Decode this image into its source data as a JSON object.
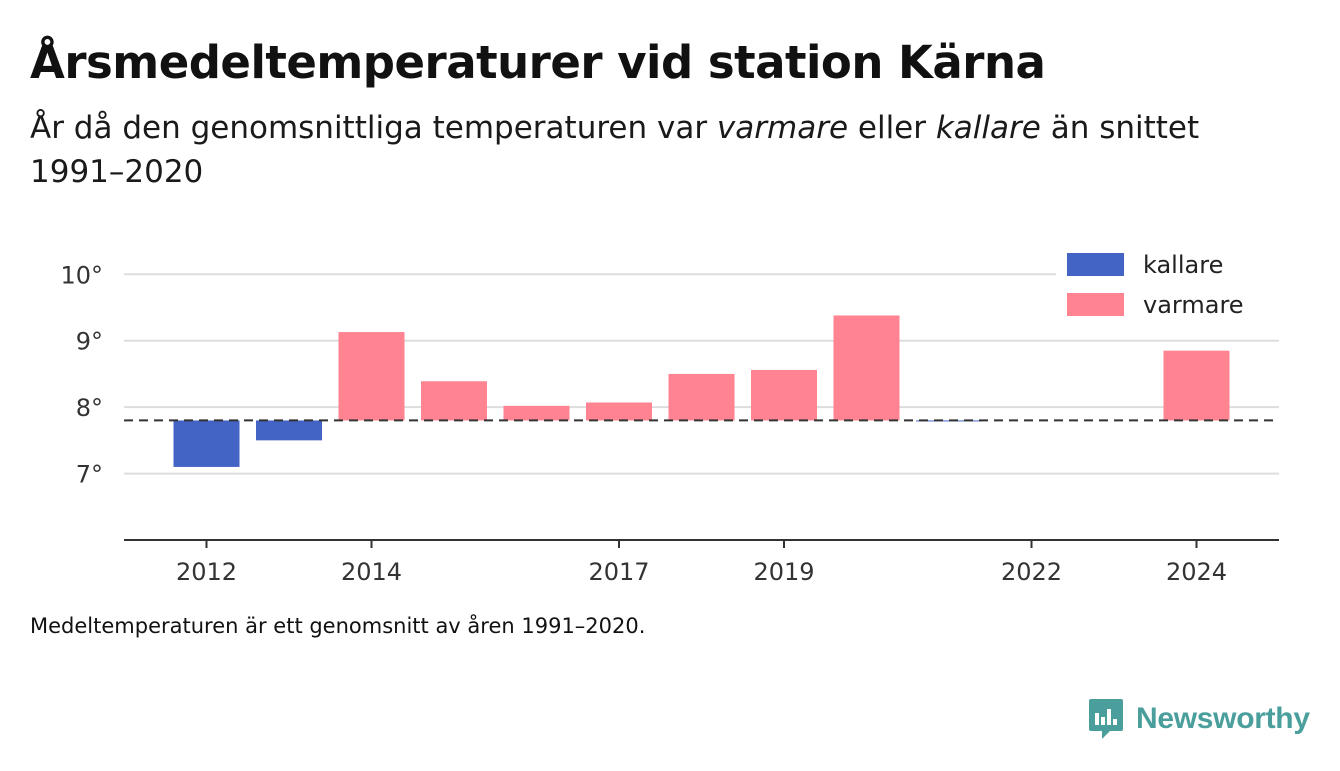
{
  "title": "Årsmedeltemperaturer vid station Kärna",
  "subtitle": {
    "part1": "År då den genomsnittliga temperaturen var ",
    "warm_word": "varmare",
    "part2": " eller ",
    "cold_word": "kallare",
    "part3": " än snittet 1991–2020"
  },
  "note": "Medeltemperaturen är ett genomsnitt av åren 1991–2020.",
  "brand": "Newsworthy",
  "colors": {
    "kallare": "#4364c4",
    "varmare": "#ff8391",
    "reference_line": "#333333",
    "grid": "#dddddd",
    "axis": "#333333",
    "brand": "#4a9f9c"
  },
  "chart_data": {
    "type": "bar",
    "baseline": 7.8,
    "ylim": [
      6.0,
      10.2
    ],
    "yticks": [
      7,
      8,
      9,
      10
    ],
    "ytick_labels": [
      "7°",
      "8°",
      "9°",
      "10°"
    ],
    "xlim": [
      2011,
      2025
    ],
    "xticks": [
      2012,
      2014,
      2017,
      2019,
      2022,
      2024
    ],
    "xtick_labels": [
      "2012",
      "2014",
      "2017",
      "2019",
      "2022",
      "2024"
    ],
    "grid": true,
    "legend_position": "top-right",
    "legend": [
      {
        "key": "kallare",
        "label": "kallare"
      },
      {
        "key": "varmare",
        "label": "varmare"
      }
    ],
    "series": [
      {
        "year": 2012,
        "value": 7.1,
        "category": "kallare"
      },
      {
        "year": 2013,
        "value": 7.5,
        "category": "kallare"
      },
      {
        "year": 2014,
        "value": 9.13,
        "category": "varmare"
      },
      {
        "year": 2015,
        "value": 8.39,
        "category": "varmare"
      },
      {
        "year": 2016,
        "value": 8.02,
        "category": "varmare"
      },
      {
        "year": 2017,
        "value": 8.07,
        "category": "varmare"
      },
      {
        "year": 2018,
        "value": 8.5,
        "category": "varmare"
      },
      {
        "year": 2019,
        "value": 8.56,
        "category": "varmare"
      },
      {
        "year": 2020,
        "value": 9.38,
        "category": "varmare"
      },
      {
        "year": 2021,
        "value": 7.79,
        "category": "kallare"
      },
      {
        "year": 2024,
        "value": 8.85,
        "category": "varmare"
      }
    ]
  }
}
